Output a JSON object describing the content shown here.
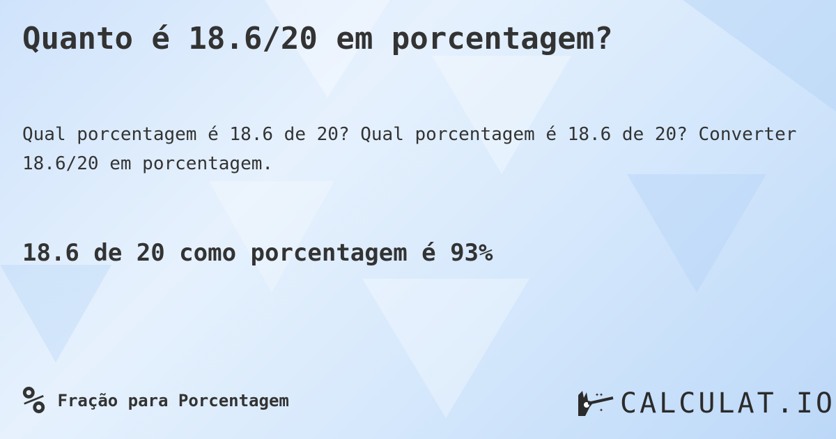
{
  "title": "Quanto é 18.6/20 em porcentagem?",
  "description": "Qual porcentagem é 18.6 de 20? Qual porcentagem é 18.6 de 20? Converter 18.6/20 em porcentagem.",
  "answer": "18.6 de 20 como porcentagem é 93%",
  "footer": {
    "icon": "percent-icon",
    "icon_glyph": "%",
    "label": "Fração para Porcentagem"
  },
  "logo": {
    "text": "CALCULAT.IO",
    "icon": "magic-hand-icon"
  },
  "colors": {
    "text": "#333333",
    "background": "#d7e9fc"
  }
}
